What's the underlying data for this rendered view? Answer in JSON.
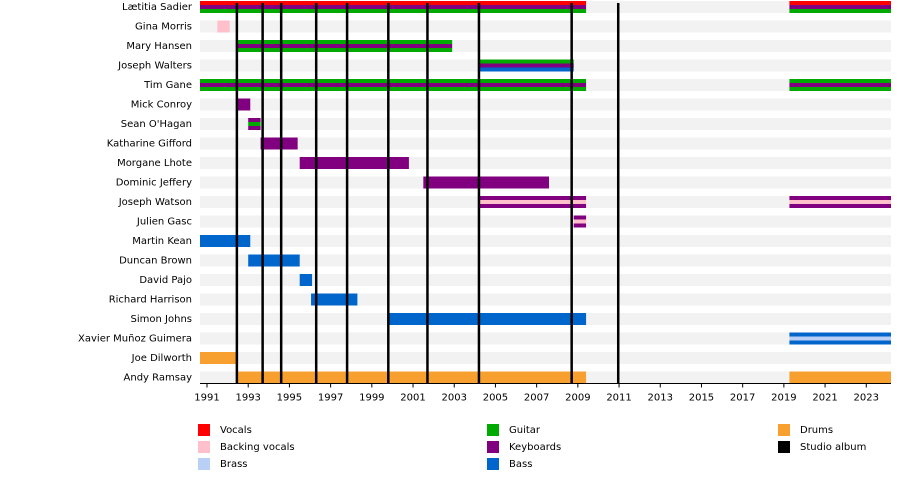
{
  "chart_data": {
    "type": "timeline",
    "xlim": [
      1990.66,
      2024.2
    ],
    "xticks": [
      1991,
      1993,
      1995,
      1997,
      1999,
      2001,
      2003,
      2005,
      2007,
      2009,
      2011,
      2013,
      2015,
      2017,
      2019,
      2021,
      2023
    ],
    "legend": [
      {
        "name": "Vocals",
        "color": "#ff0000"
      },
      {
        "name": "Backing vocals",
        "color": "#ffc0cb"
      },
      {
        "name": "Brass",
        "color": "#b9cff5"
      },
      {
        "name": "Guitar",
        "color": "#00aa00"
      },
      {
        "name": "Keyboards",
        "color": "#800080"
      },
      {
        "name": "Bass",
        "color": "#0066cc"
      },
      {
        "name": "Drums",
        "color": "#f7a030"
      },
      {
        "name": "Studio album",
        "color": "#000000"
      }
    ],
    "albums": [
      1992.45,
      1993.7,
      1994.6,
      1996.3,
      1997.8,
      1999.8,
      2001.7,
      2004.2,
      2008.7,
      2010.96
    ],
    "members": [
      {
        "name": "Lætitia Sadier",
        "roles": [
          "Vocals",
          "Keyboards",
          "Guitar"
        ],
        "periods": [
          [
            1990.66,
            2009.4
          ],
          [
            2019.27,
            2024.2
          ]
        ]
      },
      {
        "name": "Gina Morris",
        "roles": [
          "Backing vocals"
        ],
        "periods": [
          [
            1991.5,
            1992.1
          ]
        ]
      },
      {
        "name": "Mary Hansen",
        "roles": [
          "Guitar",
          "Keyboards",
          "Guitar"
        ],
        "periods": [
          [
            1992.5,
            2002.9
          ]
        ]
      },
      {
        "name": "Joseph Walters",
        "roles": [
          "Guitar",
          "Keyboards",
          "Bass"
        ],
        "periods": [
          [
            2004.2,
            2008.8
          ]
        ]
      },
      {
        "name": "Tim Gane",
        "roles": [
          "Guitar",
          "Keyboards",
          "Guitar"
        ],
        "periods": [
          [
            1990.66,
            2009.4
          ],
          [
            2019.27,
            2024.2
          ]
        ]
      },
      {
        "name": "Mick Conroy",
        "roles": [
          "Keyboards"
        ],
        "periods": [
          [
            1992.5,
            1993.1
          ]
        ]
      },
      {
        "name": "Sean O'Hagan",
        "roles": [
          "Keyboards",
          "Guitar",
          "Keyboards"
        ],
        "periods": [
          [
            1993.0,
            1993.6
          ]
        ]
      },
      {
        "name": "Katharine Gifford",
        "roles": [
          "Keyboards"
        ],
        "periods": [
          [
            1993.6,
            1995.4
          ]
        ]
      },
      {
        "name": "Morgane Lhote",
        "roles": [
          "Keyboards"
        ],
        "periods": [
          [
            1995.5,
            2000.8
          ]
        ]
      },
      {
        "name": "Dominic Jeffery",
        "roles": [
          "Keyboards"
        ],
        "periods": [
          [
            2001.5,
            2007.6
          ]
        ]
      },
      {
        "name": "Joseph Watson",
        "roles": [
          "Keyboards",
          "Backing vocals",
          "Keyboards"
        ],
        "periods": [
          [
            2004.2,
            2009.4
          ],
          [
            2019.27,
            2024.2
          ]
        ]
      },
      {
        "name": "Julien Gasc",
        "roles": [
          "Keyboards",
          "Backing vocals",
          "Keyboards"
        ],
        "periods": [
          [
            2008.8,
            2009.4
          ]
        ]
      },
      {
        "name": "Martin Kean",
        "roles": [
          "Bass"
        ],
        "periods": [
          [
            1990.66,
            1993.1
          ]
        ]
      },
      {
        "name": "Duncan Brown",
        "roles": [
          "Bass"
        ],
        "periods": [
          [
            1993.0,
            1995.5
          ]
        ]
      },
      {
        "name": "David Pajo",
        "roles": [
          "Bass"
        ],
        "periods": [
          [
            1995.5,
            1996.1
          ]
        ]
      },
      {
        "name": "Richard Harrison",
        "roles": [
          "Bass"
        ],
        "periods": [
          [
            1996.05,
            1998.3
          ]
        ]
      },
      {
        "name": "Simon Johns",
        "roles": [
          "Bass"
        ],
        "periods": [
          [
            1999.8,
            2009.4
          ]
        ]
      },
      {
        "name": "Xavier Muñoz Guimera",
        "roles": [
          "Bass",
          "Brass",
          "Bass"
        ],
        "periods": [
          [
            2019.27,
            2024.2
          ]
        ]
      },
      {
        "name": "Joe Dilworth",
        "roles": [
          "Drums"
        ],
        "periods": [
          [
            1990.66,
            1992.45
          ]
        ]
      },
      {
        "name": "Andy Ramsay",
        "roles": [
          "Drums"
        ],
        "periods": [
          [
            1992.45,
            2009.4
          ],
          [
            2019.27,
            2024.2
          ]
        ]
      }
    ]
  }
}
